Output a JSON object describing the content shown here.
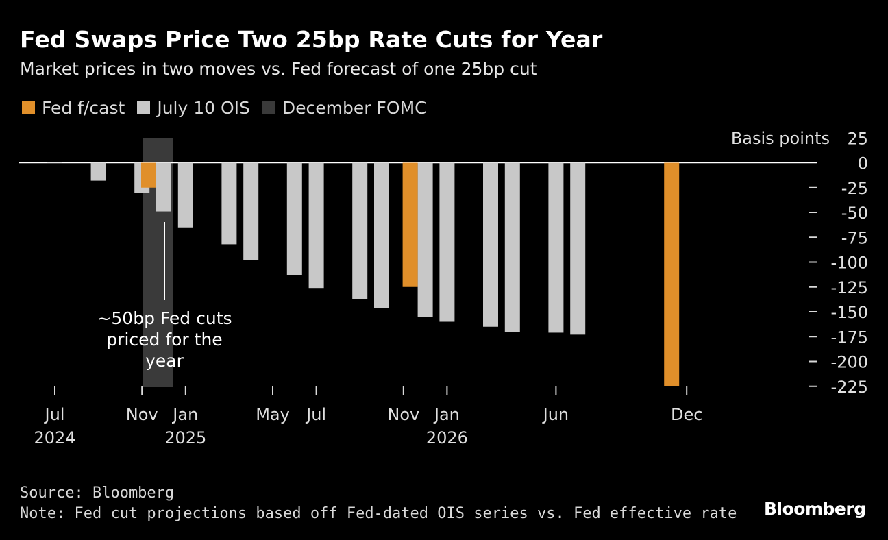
{
  "header": {
    "title": "Fed Swaps Price Two 25bp Rate Cuts for Year",
    "subtitle": "Market prices in two moves vs. Fed forecast of one 25bp cut"
  },
  "legend": [
    {
      "label": "Fed f/cast",
      "color": "#e08f2a"
    },
    {
      "label": "July 10 OIS",
      "color": "#c8c8c8"
    },
    {
      "label": "December FOMC",
      "color": "#3a3a3a"
    }
  ],
  "chart_data": {
    "type": "bar",
    "ylabel": "Basis points",
    "ylim": [
      -225,
      25
    ],
    "yticks": [
      25,
      0,
      -25,
      -50,
      -75,
      -100,
      -125,
      -150,
      -175,
      -200,
      -225
    ],
    "grid": false,
    "legend_position": "top-left",
    "y_axis_position": "right",
    "x_ticks": [
      {
        "label": "Jul",
        "year": "2024"
      },
      {
        "label": "Nov",
        "year": ""
      },
      {
        "label": "Jan",
        "year": "2025"
      },
      {
        "label": "May",
        "year": ""
      },
      {
        "label": "Jul",
        "year": ""
      },
      {
        "label": "Nov",
        "year": ""
      },
      {
        "label": "Jan",
        "year": "2026"
      },
      {
        "label": "Jun",
        "year": ""
      },
      {
        "label": "Dec",
        "year": ""
      }
    ],
    "series": [
      {
        "name": "July 10 OIS",
        "color": "#c8c8c8",
        "points": [
          {
            "date": "2024-07",
            "value": 1
          },
          {
            "date": "2024-09",
            "value": -18
          },
          {
            "date": "2024-11",
            "value": -30
          },
          {
            "date": "2024-12",
            "value": -49
          },
          {
            "date": "2025-01",
            "value": -65
          },
          {
            "date": "2025-03",
            "value": -82
          },
          {
            "date": "2025-04",
            "value": -98
          },
          {
            "date": "2025-06",
            "value": -113
          },
          {
            "date": "2025-07",
            "value": -126
          },
          {
            "date": "2025-09",
            "value": -137
          },
          {
            "date": "2025-10",
            "value": -146
          },
          {
            "date": "2025-12",
            "value": -155
          },
          {
            "date": "2026-01",
            "value": -160
          },
          {
            "date": "2026-03",
            "value": -165
          },
          {
            "date": "2026-04",
            "value": -170
          },
          {
            "date": "2026-06",
            "value": -171
          },
          {
            "date": "2026-07",
            "value": -173
          }
        ]
      },
      {
        "name": "Fed f/cast",
        "color": "#e08f2a",
        "points": [
          {
            "date": "2024-12",
            "value": -25
          },
          {
            "date": "2025-12",
            "value": -125
          },
          {
            "date": "2026-12",
            "value": -225
          }
        ]
      }
    ],
    "highlight": {
      "name": "December FOMC",
      "color": "#3a3a3a",
      "period": "2024-12"
    },
    "annotation": "~50bp Fed cuts priced for the year"
  },
  "footer": {
    "source": "Source: Bloomberg",
    "note": "Note: Fed cut projections based off Fed-dated OIS series vs. Fed effective rate"
  },
  "brand": "Bloomberg"
}
